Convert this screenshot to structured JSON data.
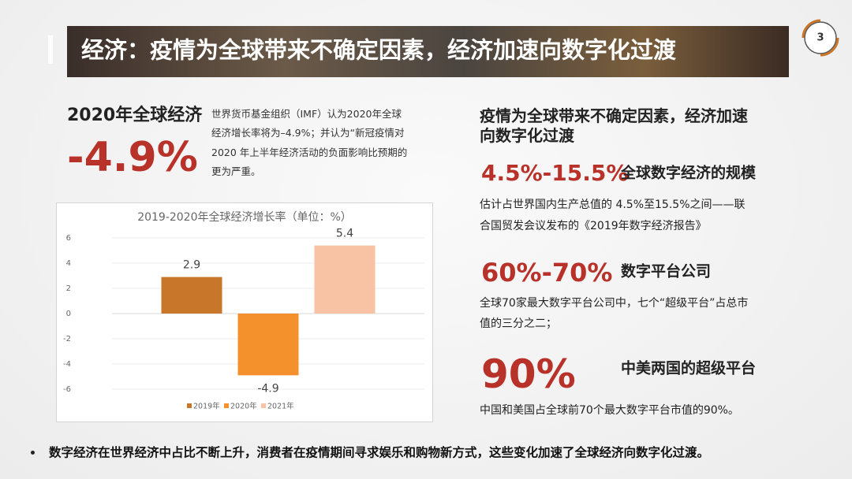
{
  "header": {
    "title": "经济：疫情为全球带来不确定因素，经济加速向数字化过渡",
    "page_number": "3"
  },
  "left": {
    "headline": "2020年全球经济",
    "big_number": "-4.9%",
    "description_lines": [
      "世界货币基金组织（IMF）认为2020年全球",
      "经济增长率将为–4.9%；并认为“新冠疫情对",
      "2020 年上半年经济活动的负面影响比预期的",
      "更为严重。"
    ]
  },
  "chart_data": {
    "type": "bar",
    "title": "2019-2020年全球经济增长率（单位：%）",
    "categories": [
      null
    ],
    "series": [
      {
        "name": "2019年",
        "color": "#c8772a",
        "values": [
          2.9
        ]
      },
      {
        "name": "2020年",
        "color": "#f5912d",
        "values": [
          -4.9
        ]
      },
      {
        "name": "2021年",
        "color": "#f8c2a4",
        "values": [
          5.4
        ]
      }
    ],
    "ylim": [
      -6,
      6
    ],
    "yticks": [
      -6,
      -4,
      -2,
      0,
      2,
      4,
      6
    ],
    "grid": true,
    "legend": "bottom"
  },
  "right": {
    "heading_lines": [
      "疫情为全球带来不确定因素，经济加速",
      "向数字化过渡"
    ],
    "items": [
      {
        "value": "4.5%-15.5%",
        "label": "全球数字经济的规模",
        "lines": [
          "估计占世界国内生产总值的 4.5%至15.5%之间——联",
          "合国贸发会议发布的《2019年数字经济报告》"
        ]
      },
      {
        "value": "60%-70%",
        "label": "数字平台公司",
        "lines": [
          "全球70家最大数字平台公司中，七个“超级平台”占总市",
          "值的三分之二；"
        ]
      },
      {
        "value": "90%",
        "label": "中美两国的超级平台",
        "lines": [
          "中国和美国占全球前70个最大数字平台市值的90%。"
        ]
      }
    ]
  },
  "footer": {
    "bullet": "数字经济在世界经济中占比不断上升，消费者在疫情期间寻求娱乐和购物新方式，这些变化加速了全球经济向数字化过渡。"
  }
}
